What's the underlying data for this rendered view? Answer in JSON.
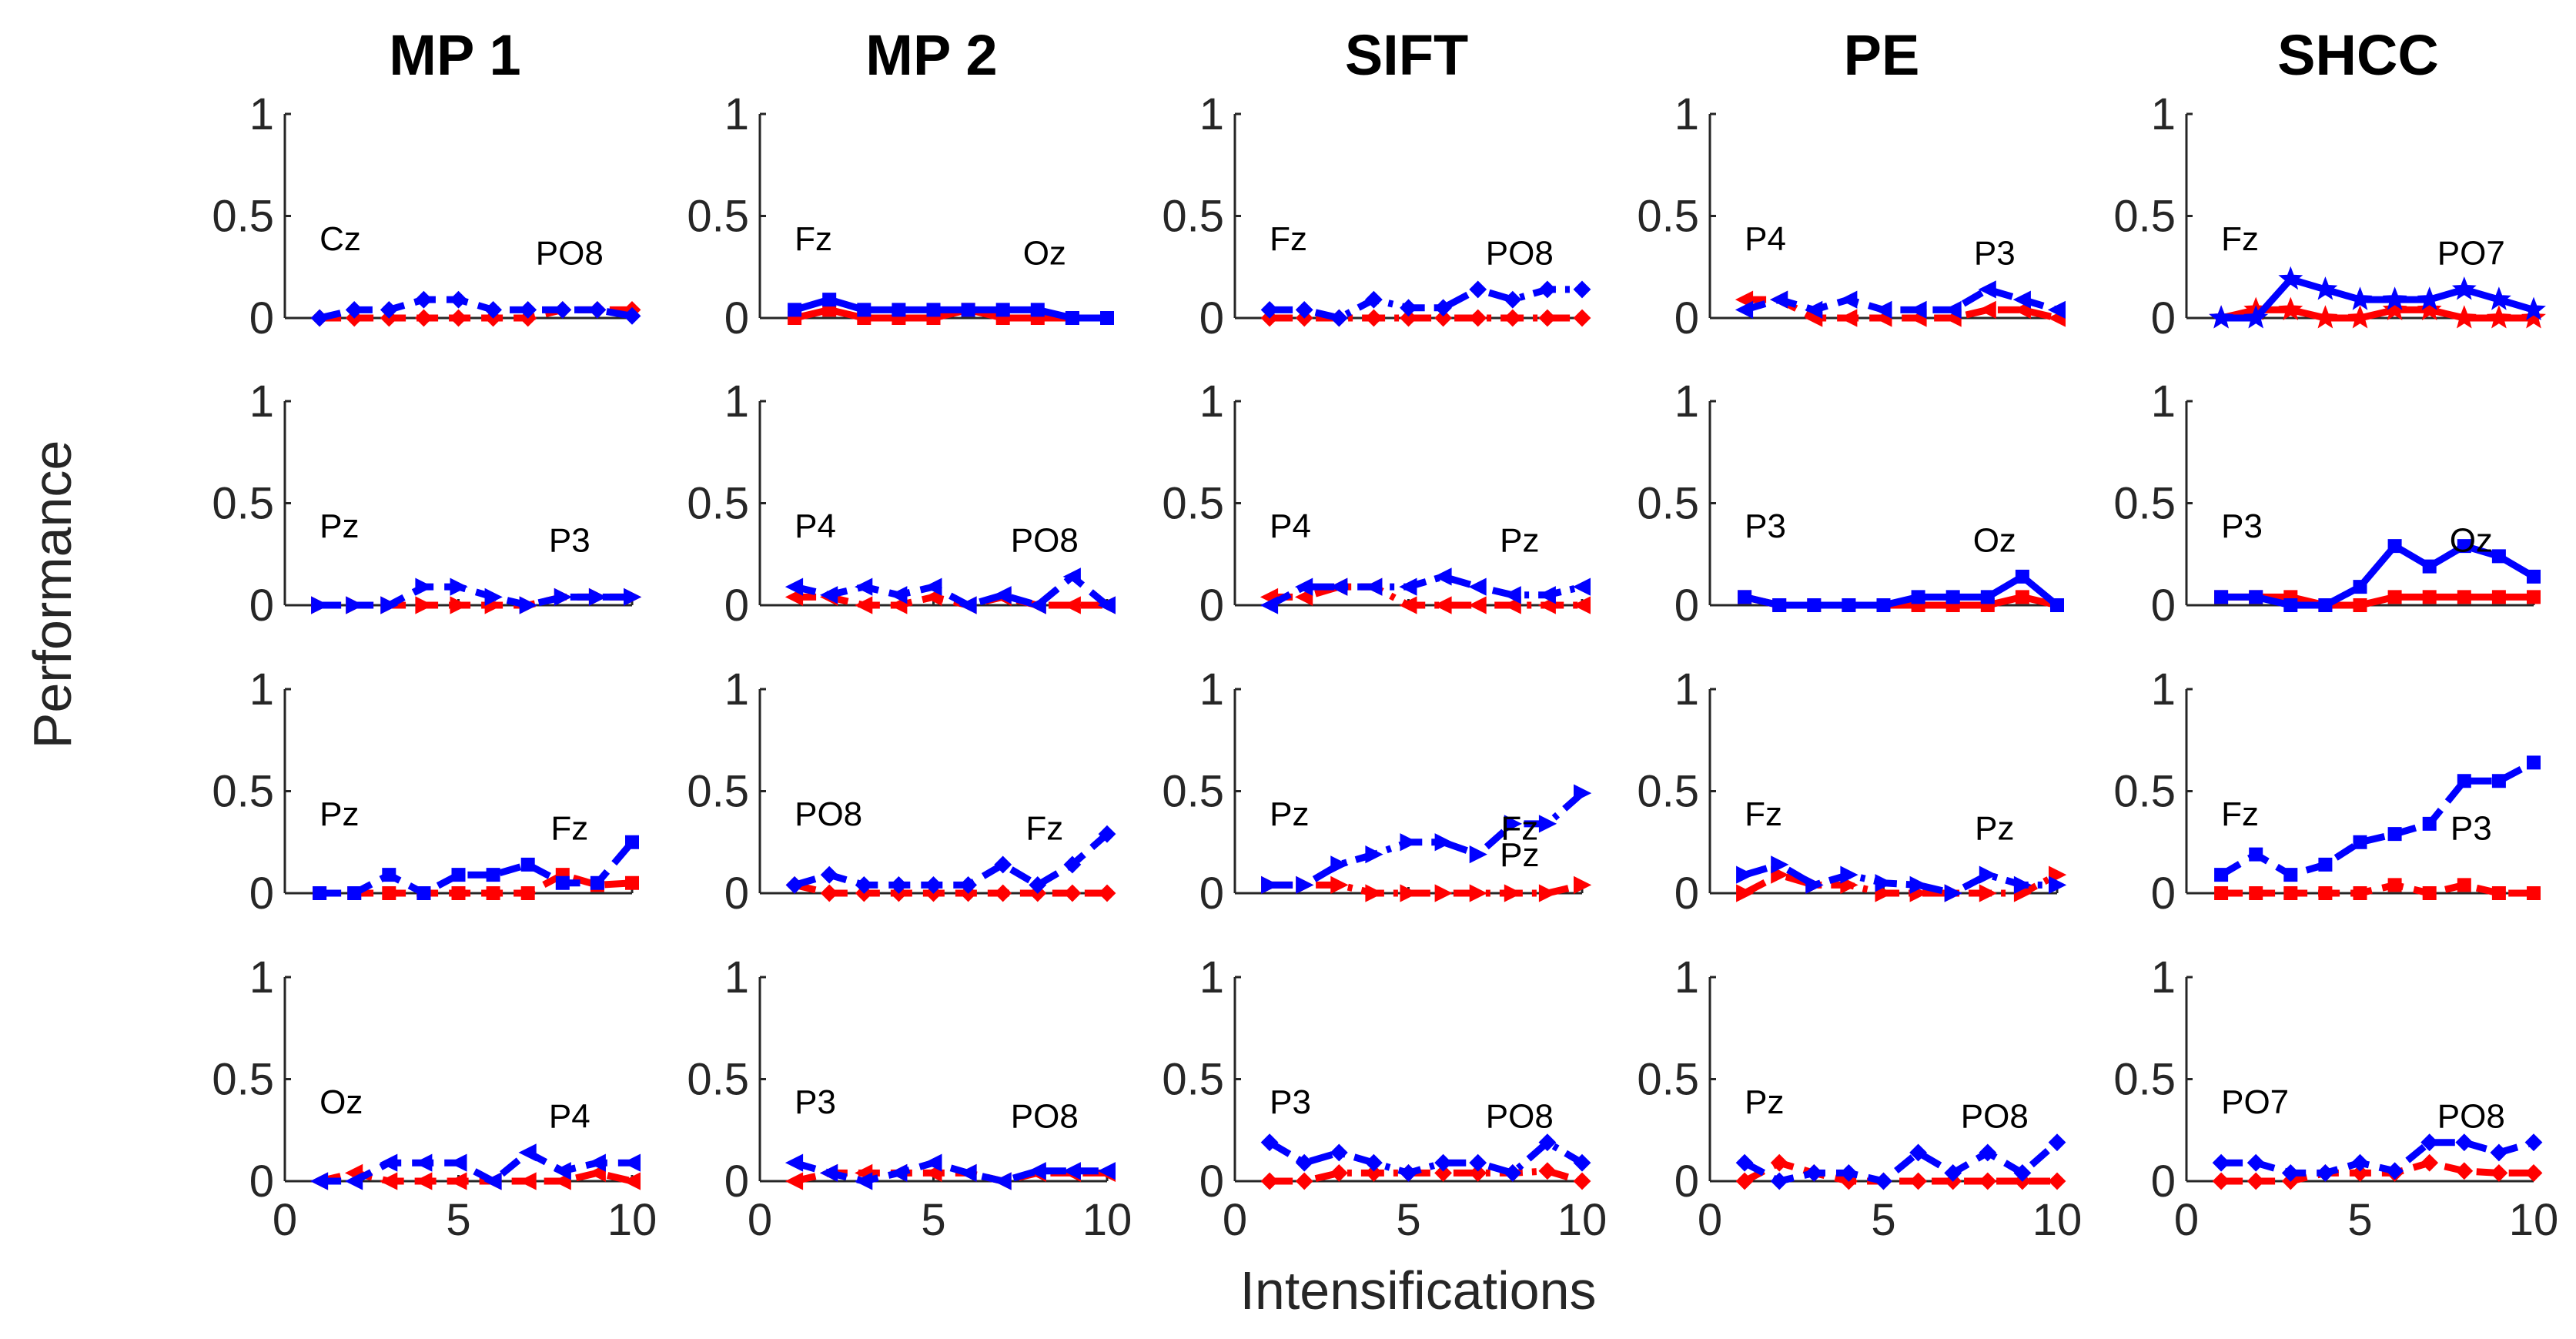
{
  "chart_data": {
    "type": "line",
    "columns": [
      "MP 1",
      "MP 2",
      "SIFT",
      "PE",
      "SHCC"
    ],
    "xlabel": "Intensifications",
    "ylabel": "Performance",
    "xlim": [
      0,
      10
    ],
    "ylim": [
      0,
      1
    ],
    "xticks": [
      "0",
      "5",
      "10"
    ],
    "yticks": [
      "0",
      "0.5",
      "1"
    ],
    "grid": false,
    "colors": {
      "blue": "#0000ff",
      "red": "#ff0000"
    },
    "x": [
      1,
      2,
      3,
      4,
      5,
      6,
      7,
      8,
      9,
      10
    ],
    "panels": [
      [
        {
          "labels": [
            "Cz",
            "PO8"
          ],
          "marker": "diamond",
          "dash": "dashed",
          "blue": [
            0,
            0.04,
            0.04,
            0.09,
            0.09,
            0.04,
            0.04,
            0.04,
            0.04,
            0.01
          ],
          "red": [
            0,
            0,
            0,
            0,
            0,
            0,
            0,
            0.04,
            0.04,
            0.04
          ]
        },
        {
          "labels": [
            "Pz",
            "P3"
          ],
          "marker": "triangle-right",
          "dash": "dashed",
          "blue": [
            0,
            0,
            0,
            0.09,
            0.09,
            0.04,
            0,
            0.04,
            0.04,
            0.04
          ],
          "red": [
            0,
            0,
            0,
            0,
            0,
            0,
            0,
            0.04,
            0.04,
            0.04
          ]
        },
        {
          "labels": [
            "Pz",
            "Fz"
          ],
          "marker": "square",
          "dash": "dashed",
          "blue": [
            0,
            0,
            0.09,
            0,
            0.09,
            0.09,
            0.14,
            0.05,
            0.05,
            0.25
          ],
          "red": [
            0,
            0,
            0,
            0,
            0,
            0,
            0,
            0.09,
            0.04,
            0.05
          ]
        },
        {
          "labels": [
            "Oz",
            "P4"
          ],
          "marker": "triangle-left",
          "dash": "dashed",
          "blue": [
            0,
            0,
            0.09,
            0.09,
            0.09,
            0,
            0.14,
            0.05,
            0.09,
            0.09
          ],
          "red": [
            0,
            0.04,
            0,
            0,
            0,
            0,
            0,
            0,
            0.04,
            0
          ]
        }
      ],
      [
        {
          "labels": [
            "Fz",
            "Oz"
          ],
          "marker": "square",
          "dash": "solid",
          "blue": [
            0.04,
            0.09,
            0.04,
            0.04,
            0.04,
            0.04,
            0.04,
            0.04,
            0,
            0
          ],
          "red": [
            0,
            0.04,
            0,
            0,
            0,
            0.04,
            0,
            0,
            0,
            0
          ]
        },
        {
          "labels": [
            "P4",
            "PO8"
          ],
          "marker": "triangle-left",
          "dash": "dashed",
          "blue": [
            0.09,
            0.05,
            0.09,
            0.05,
            0.09,
            0,
            0.05,
            0,
            0.14,
            0
          ],
          "red": [
            0.04,
            0.04,
            0,
            0,
            0.04,
            0,
            0.04,
            0,
            0,
            0
          ]
        },
        {
          "labels": [
            "PO8",
            "Fz"
          ],
          "marker": "diamond",
          "dash": "dashed",
          "blue": [
            0.04,
            0.09,
            0.04,
            0.04,
            0.04,
            0.04,
            0.14,
            0.04,
            0.14,
            0.29
          ],
          "red": [
            0.04,
            0,
            0,
            0,
            0,
            0,
            0,
            0,
            0,
            0
          ]
        },
        {
          "labels": [
            "P3",
            "PO8"
          ],
          "marker": "triangle-left",
          "dash": "dashed",
          "blue": [
            0.09,
            0.04,
            0,
            0.04,
            0.09,
            0.04,
            0,
            0.05,
            0.05,
            0.05
          ],
          "red": [
            0,
            0.04,
            0.04,
            0.04,
            0.04,
            0.04,
            0,
            0.04,
            0.04,
            0.04
          ]
        }
      ],
      [
        {
          "labels": [
            "Fz",
            "PO8"
          ],
          "marker": "diamond",
          "dash": "dashdot",
          "blue": [
            0.04,
            0.04,
            0,
            0.09,
            0.05,
            0.05,
            0.14,
            0.09,
            0.14,
            0.14
          ],
          "red": [
            0,
            0,
            0,
            0,
            0,
            0,
            0,
            0,
            0,
            0
          ]
        },
        {
          "labels": [
            "P4",
            "Pz"
          ],
          "marker": "triangle-left",
          "dash": "dashdot",
          "blue": [
            0,
            0.09,
            0.09,
            0.09,
            0.09,
            0.14,
            0.09,
            0.05,
            0.05,
            0.09
          ],
          "red": [
            0.04,
            0.04,
            0.09,
            0.09,
            0,
            0,
            0,
            0,
            0,
            0
          ]
        },
        {
          "labels": [
            "Pz",
            "Fz",
            "Pz"
          ],
          "marker": "triangle-right",
          "dash": "dashdot",
          "blue": [
            0.04,
            0.04,
            0.14,
            0.19,
            0.25,
            0.25,
            0.19,
            0.34,
            0.34,
            0.49
          ],
          "red": [
            0.04,
            0.04,
            0.04,
            0,
            0,
            0,
            0,
            0,
            0,
            0.04
          ]
        },
        {
          "labels": [
            "P3",
            "PO8"
          ],
          "marker": "diamond",
          "dash": "dashdot",
          "blue": [
            0.19,
            0.09,
            0.14,
            0.09,
            0.04,
            0.09,
            0.09,
            0.04,
            0.19,
            0.09
          ],
          "red": [
            0,
            0,
            0.04,
            0.04,
            0.04,
            0.04,
            0.04,
            0.04,
            0.05,
            0
          ]
        }
      ],
      [
        {
          "labels": [
            "P4",
            "P3"
          ],
          "marker": "triangle-left",
          "dash": "dashed",
          "blue": [
            0.04,
            0.09,
            0.04,
            0.09,
            0.04,
            0.04,
            0.04,
            0.14,
            0.09,
            0.04
          ],
          "red": [
            0.09,
            0.09,
            0,
            0,
            0,
            0,
            0,
            0.04,
            0.04,
            0
          ]
        },
        {
          "labels": [
            "P3",
            "Oz"
          ],
          "marker": "square",
          "dash": "solid",
          "blue": [
            0.04,
            0,
            0,
            0,
            0,
            0.04,
            0.04,
            0.04,
            0.14,
            0
          ],
          "red": [
            0.04,
            0,
            0,
            0,
            0,
            0,
            0,
            0,
            0.04,
            0
          ]
        },
        {
          "labels": [
            "Fz",
            "Pz"
          ],
          "marker": "triangle-right",
          "dash": "dashdot",
          "blue": [
            0.09,
            0.14,
            0.04,
            0.09,
            0.05,
            0.04,
            0,
            0.09,
            0.04,
            0.04
          ],
          "red": [
            0,
            0.09,
            0.04,
            0.04,
            0,
            0,
            0,
            0,
            0,
            0.09
          ]
        },
        {
          "labels": [
            "Pz",
            "PO8"
          ],
          "marker": "diamond",
          "dash": "dashed",
          "blue": [
            0.09,
            0,
            0.04,
            0.04,
            0,
            0.14,
            0.04,
            0.14,
            0.04,
            0.19
          ],
          "red": [
            0,
            0.09,
            0.04,
            0,
            0,
            0,
            0,
            0,
            0,
            0
          ]
        }
      ],
      [
        {
          "labels": [
            "Fz",
            "PO7"
          ],
          "marker": "star",
          "dash": "solid",
          "blue": [
            0,
            0,
            0.19,
            0.14,
            0.09,
            0.09,
            0.09,
            0.14,
            0.09,
            0.04
          ],
          "red": [
            0,
            0.04,
            0.04,
            0,
            0,
            0.04,
            0.04,
            0,
            0,
            0
          ]
        },
        {
          "labels": [
            "P3",
            "Oz"
          ],
          "marker": "square",
          "dash": "solid",
          "blue": [
            0.04,
            0.04,
            0,
            0,
            0.09,
            0.29,
            0.19,
            0.29,
            0.24,
            0.14
          ],
          "red": [
            0.04,
            0.04,
            0.04,
            0,
            0,
            0.04,
            0.04,
            0.04,
            0.04,
            0.04
          ]
        },
        {
          "labels": [
            "Fz",
            "P3"
          ],
          "marker": "square",
          "dash": "dashed",
          "blue": [
            0.09,
            0.19,
            0.09,
            0.14,
            0.25,
            0.29,
            0.34,
            0.55,
            0.55,
            0.64
          ],
          "red": [
            0,
            0,
            0,
            0,
            0,
            0.04,
            0,
            0.04,
            0,
            0
          ]
        },
        {
          "labels": [
            "PO7",
            "PO8"
          ],
          "marker": "diamond",
          "dash": "dashed",
          "blue": [
            0.09,
            0.09,
            0.04,
            0.04,
            0.09,
            0.05,
            0.19,
            0.19,
            0.14,
            0.19
          ],
          "red": [
            0,
            0,
            0,
            0.04,
            0.04,
            0.04,
            0.09,
            0.05,
            0.04,
            0.04
          ]
        }
      ]
    ]
  }
}
